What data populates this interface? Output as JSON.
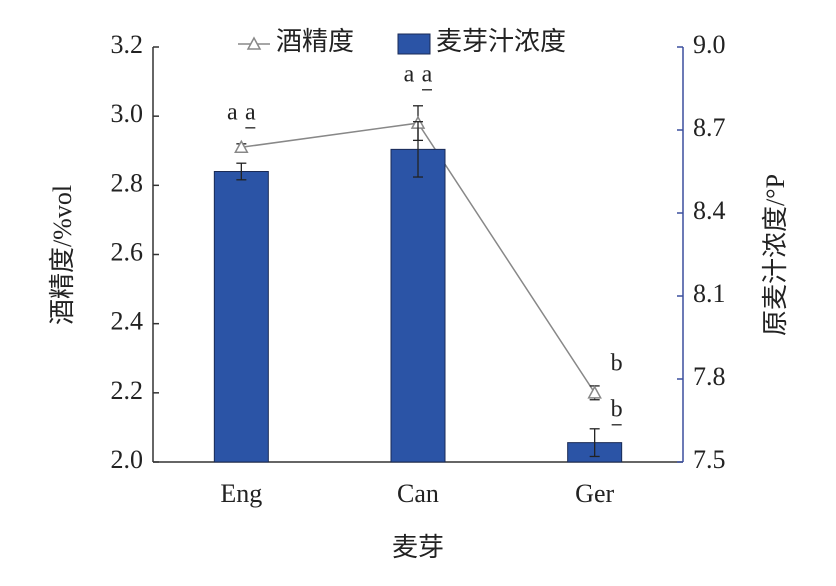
{
  "chart_data": {
    "type": "bar-line",
    "x_label": "麦芽",
    "y_label": "酒精度/%vol",
    "y2_label": "原麦汁浓度/°P",
    "categories": [
      "Eng",
      "Can",
      "Ger"
    ],
    "ylim": [
      2.0,
      3.2
    ],
    "yticks": [
      {
        "value": 2,
        "label": "2.0"
      },
      2.2,
      2.4,
      2.6,
      2.8,
      {
        "value": 3,
        "label": "3.0"
      },
      3.2
    ],
    "y2lim": [
      7.5,
      9.0
    ],
    "y2ticks": [
      7.5,
      7.8,
      8.1,
      8.4,
      8.7,
      {
        "value": 9,
        "label": "9.0"
      }
    ],
    "series": [
      {
        "name": "酒精度",
        "type": "line",
        "color": "#888888",
        "values": [
          2.91,
          2.98,
          2.2
        ],
        "errors": [
          0.01,
          0.05,
          0.02
        ],
        "labels": [
          "a",
          "a",
          "b"
        ]
      },
      {
        "name": "麦芽汁浓度",
        "type": "bar",
        "axis": "y2",
        "color": "#2b54a6",
        "values": [
          8.55,
          8.63,
          7.57
        ],
        "errors": [
          0.03,
          0.1,
          0.05
        ],
        "labels": [
          "a",
          "a",
          "b"
        ]
      }
    ]
  }
}
